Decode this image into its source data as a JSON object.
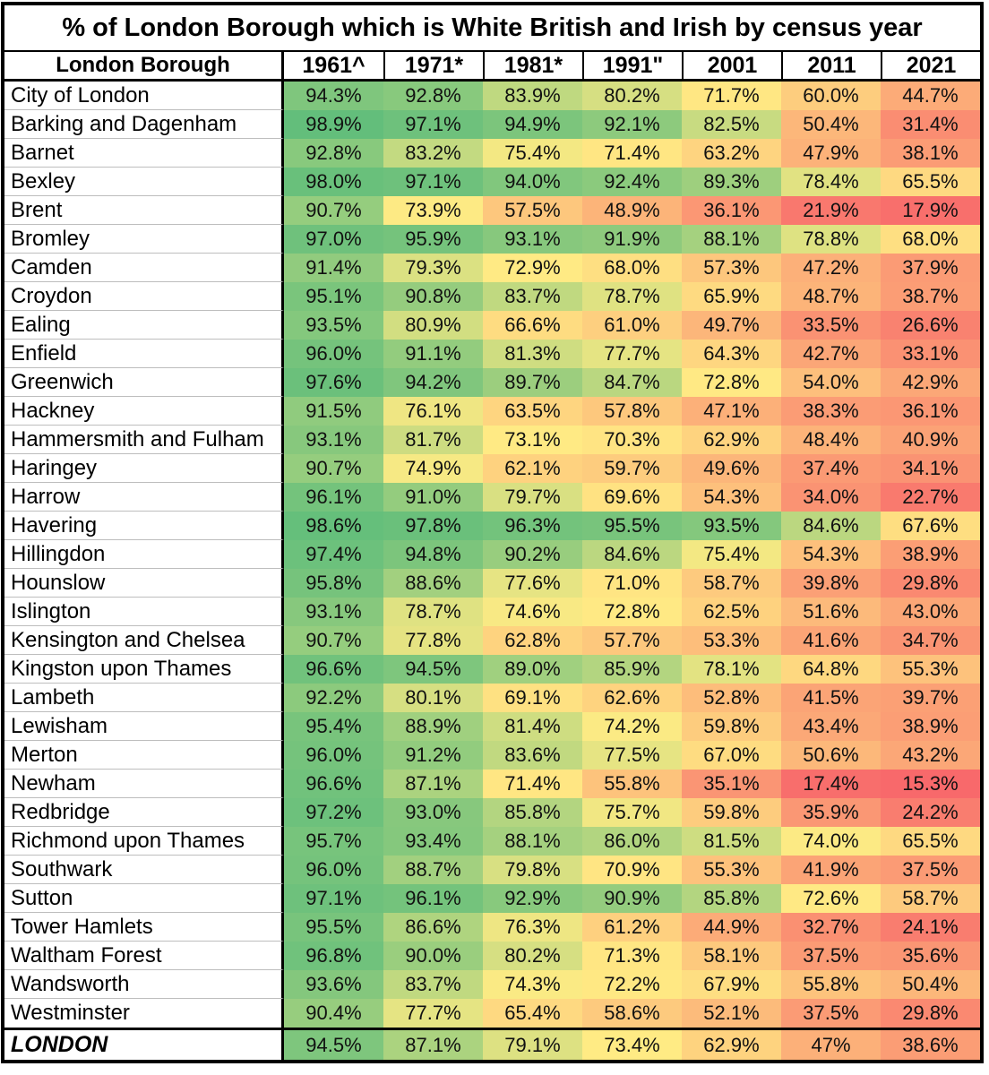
{
  "title": "% of London Borough which is White British and Irish by census year",
  "chart_data": {
    "type": "heatmap",
    "row_header_label": "London Borough",
    "columns": [
      "1961^",
      "1971*",
      "1981*",
      "1991\"",
      "2001",
      "2011",
      "2021"
    ],
    "rows": [
      {
        "name": "City of London",
        "values": [
          "94.3%",
          "92.8%",
          "83.9%",
          "80.2%",
          "71.7%",
          "60.0%",
          "44.7%"
        ]
      },
      {
        "name": "Barking and Dagenham",
        "values": [
          "98.9%",
          "97.1%",
          "94.9%",
          "92.1%",
          "82.5%",
          "50.4%",
          "31.4%"
        ]
      },
      {
        "name": "Barnet",
        "values": [
          "92.8%",
          "83.2%",
          "75.4%",
          "71.4%",
          "63.2%",
          "47.9%",
          "38.1%"
        ]
      },
      {
        "name": "Bexley",
        "values": [
          "98.0%",
          "97.1%",
          "94.0%",
          "92.4%",
          "89.3%",
          "78.4%",
          "65.5%"
        ]
      },
      {
        "name": "Brent",
        "values": [
          "90.7%",
          "73.9%",
          "57.5%",
          "48.9%",
          "36.1%",
          "21.9%",
          "17.9%"
        ]
      },
      {
        "name": "Bromley",
        "values": [
          "97.0%",
          "95.9%",
          "93.1%",
          "91.9%",
          "88.1%",
          "78.8%",
          "68.0%"
        ]
      },
      {
        "name": "Camden",
        "values": [
          "91.4%",
          "79.3%",
          "72.9%",
          "68.0%",
          "57.3%",
          "47.2%",
          "37.9%"
        ]
      },
      {
        "name": "Croydon",
        "values": [
          "95.1%",
          "90.8%",
          "83.7%",
          "78.7%",
          "65.9%",
          "48.7%",
          "38.7%"
        ]
      },
      {
        "name": "Ealing",
        "values": [
          "93.5%",
          "80.9%",
          "66.6%",
          "61.0%",
          "49.7%",
          "33.5%",
          "26.6%"
        ]
      },
      {
        "name": "Enfield",
        "values": [
          "96.0%",
          "91.1%",
          "81.3%",
          "77.7%",
          "64.3%",
          "42.7%",
          "33.1%"
        ]
      },
      {
        "name": "Greenwich",
        "values": [
          "97.6%",
          "94.2%",
          "89.7%",
          "84.7%",
          "72.8%",
          "54.0%",
          "42.9%"
        ]
      },
      {
        "name": "Hackney",
        "values": [
          "91.5%",
          "76.1%",
          "63.5%",
          "57.8%",
          "47.1%",
          "38.3%",
          "36.1%"
        ]
      },
      {
        "name": "Hammersmith and Fulham",
        "values": [
          "93.1%",
          "81.7%",
          "73.1%",
          "70.3%",
          "62.9%",
          "48.4%",
          "40.9%"
        ]
      },
      {
        "name": "Haringey",
        "values": [
          "90.7%",
          "74.9%",
          "62.1%",
          "59.7%",
          "49.6%",
          "37.4%",
          "34.1%"
        ]
      },
      {
        "name": "Harrow",
        "values": [
          "96.1%",
          "91.0%",
          "79.7%",
          "69.6%",
          "54.3%",
          "34.0%",
          "22.7%"
        ]
      },
      {
        "name": "Havering",
        "values": [
          "98.6%",
          "97.8%",
          "96.3%",
          "95.5%",
          "93.5%",
          "84.6%",
          "67.6%"
        ]
      },
      {
        "name": "Hillingdon",
        "values": [
          "97.4%",
          "94.8%",
          "90.2%",
          "84.6%",
          "75.4%",
          "54.3%",
          "38.9%"
        ]
      },
      {
        "name": "Hounslow",
        "values": [
          "95.8%",
          "88.6%",
          "77.6%",
          "71.0%",
          "58.7%",
          "39.8%",
          "29.8%"
        ]
      },
      {
        "name": "Islington",
        "values": [
          "93.1%",
          "78.7%",
          "74.6%",
          "72.8%",
          "62.5%",
          "51.6%",
          "43.0%"
        ]
      },
      {
        "name": "Kensington and Chelsea",
        "values": [
          "90.7%",
          "77.8%",
          "62.8%",
          "57.7%",
          "53.3%",
          "41.6%",
          "34.7%"
        ]
      },
      {
        "name": "Kingston upon Thames",
        "values": [
          "96.6%",
          "94.5%",
          "89.0%",
          "85.9%",
          "78.1%",
          "64.8%",
          "55.3%"
        ]
      },
      {
        "name": "Lambeth",
        "values": [
          "92.2%",
          "80.1%",
          "69.1%",
          "62.6%",
          "52.8%",
          "41.5%",
          "39.7%"
        ]
      },
      {
        "name": "Lewisham",
        "values": [
          "95.4%",
          "88.9%",
          "81.4%",
          "74.2%",
          "59.8%",
          "43.4%",
          "38.9%"
        ]
      },
      {
        "name": "Merton",
        "values": [
          "96.0%",
          "91.2%",
          "83.6%",
          "77.5%",
          "67.0%",
          "50.6%",
          "43.2%"
        ]
      },
      {
        "name": "Newham",
        "values": [
          "96.6%",
          "87.1%",
          "71.4%",
          "55.8%",
          "35.1%",
          "17.4%",
          "15.3%"
        ]
      },
      {
        "name": "Redbridge",
        "values": [
          "97.2%",
          "93.0%",
          "85.8%",
          "75.7%",
          "59.8%",
          "35.9%",
          "24.2%"
        ]
      },
      {
        "name": "Richmond upon Thames",
        "values": [
          "95.7%",
          "93.4%",
          "88.1%",
          "86.0%",
          "81.5%",
          "74.0%",
          "65.5%"
        ]
      },
      {
        "name": "Southwark",
        "values": [
          "96.0%",
          "88.7%",
          "79.8%",
          "70.9%",
          "55.3%",
          "41.9%",
          "37.5%"
        ]
      },
      {
        "name": "Sutton",
        "values": [
          "97.1%",
          "96.1%",
          "92.9%",
          "90.9%",
          "85.8%",
          "72.6%",
          "58.7%"
        ]
      },
      {
        "name": "Tower Hamlets",
        "values": [
          "95.5%",
          "86.6%",
          "76.3%",
          "61.2%",
          "44.9%",
          "32.7%",
          "24.1%"
        ]
      },
      {
        "name": "Waltham Forest",
        "values": [
          "96.8%",
          "90.0%",
          "80.2%",
          "71.3%",
          "58.1%",
          "37.5%",
          "35.6%"
        ]
      },
      {
        "name": "Wandsworth",
        "values": [
          "93.6%",
          "83.7%",
          "74.3%",
          "72.2%",
          "67.9%",
          "55.8%",
          "50.4%"
        ]
      },
      {
        "name": "Westminster",
        "values": [
          "90.4%",
          "77.7%",
          "65.4%",
          "58.6%",
          "52.1%",
          "37.5%",
          "29.8%"
        ]
      }
    ],
    "total_row": {
      "name": "LONDON",
      "values": [
        "94.5%",
        "87.1%",
        "79.1%",
        "73.4%",
        "62.9%",
        "47%",
        "38.6%"
      ]
    },
    "color_scale": {
      "min_value": 15.3,
      "mid_value": 73.5,
      "max_value": 98.9,
      "min_color": "#F8696B",
      "mid_color": "#FFEB84",
      "max_color": "#63BE7B"
    }
  }
}
